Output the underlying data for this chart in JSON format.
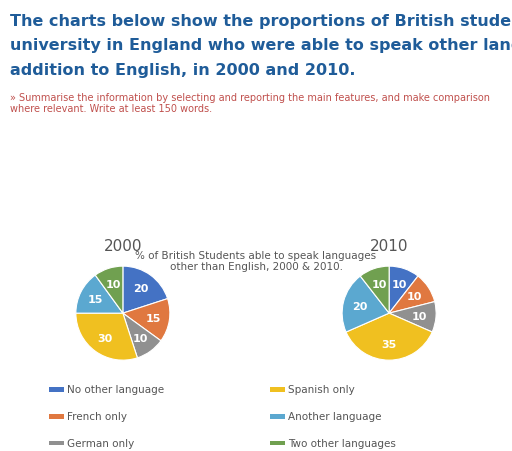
{
  "title_main_line1": "The charts below show the proportions of British students at one",
  "title_main_line2": "university in England who were able to speak other languages in",
  "title_main_line3": "addition to English, in 2000 and 2010.",
  "subtitle": "» Summarise the information by selecting and reporting the main features, and make comparison where relevant. Write at least 150 words.",
  "chart_title": "% of British Students able to speak languages\nother than English, 2000 & 2010.",
  "year_2000_label": "2000",
  "year_2010_label": "2010",
  "categories": [
    "No other language",
    "French only",
    "German only",
    "Spanish only",
    "Another language",
    "Two other languages"
  ],
  "colors": [
    "#4472C4",
    "#E07840",
    "#909090",
    "#F0C020",
    "#5BA8D0",
    "#70A050"
  ],
  "data_2000": [
    20,
    15,
    10,
    30,
    15,
    10
  ],
  "data_2010": [
    10,
    10,
    10,
    35,
    20,
    10
  ],
  "startangle_2000": 90,
  "startangle_2010": 90,
  "main_title_color": "#1F5C99",
  "subtitle_color": "#C0504D",
  "chart_title_color": "#555555",
  "legend_label_color": "#555555",
  "background_color": "#FFFFFF",
  "title_fontsize": 11.5,
  "subtitle_fontsize": 7.0,
  "chart_title_fontsize": 7.5,
  "pie_label_fontsize": 8,
  "year_label_fontsize": 11,
  "legend_fontsize": 7.5
}
